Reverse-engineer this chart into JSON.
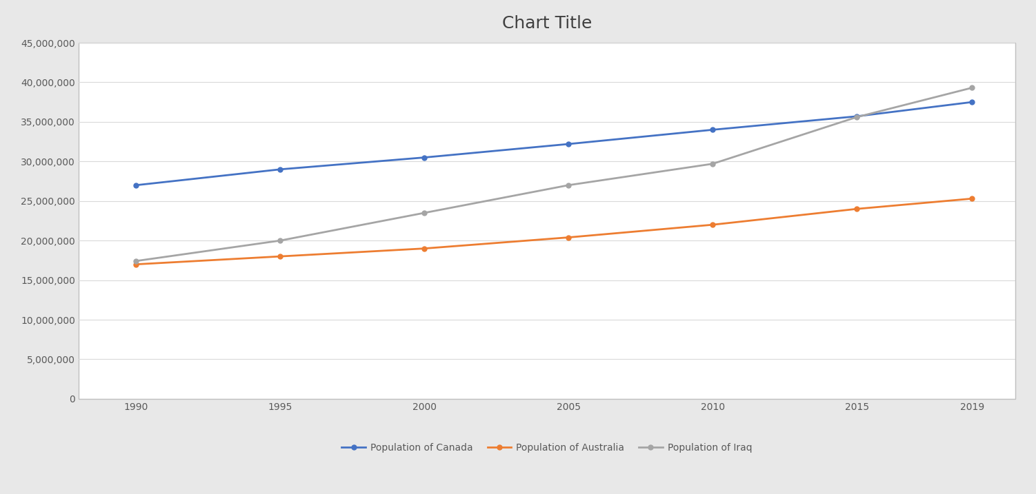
{
  "title": "Chart Title",
  "years": [
    1990,
    1995,
    2000,
    2005,
    2010,
    2015,
    2019
  ],
  "canada": [
    27000000,
    29000000,
    30500000,
    32200000,
    34000000,
    35700000,
    37500000
  ],
  "australia": [
    17000000,
    18000000,
    19000000,
    20400000,
    22000000,
    24000000,
    25300000
  ],
  "iraq": [
    17420000,
    20000000,
    23500000,
    27000000,
    29700000,
    35600000,
    39310000
  ],
  "canada_color": "#4472C4",
  "australia_color": "#ED7D31",
  "iraq_color": "#A5A5A5",
  "title_fontsize": 18,
  "legend_labels": [
    "Population of Canada",
    "Population of Australia",
    "Population of Iraq"
  ],
  "ylim": [
    0,
    45000000
  ],
  "ytick_step": 5000000,
  "background_color": "#FFFFFF",
  "chart_bg": "#FFFFFF",
  "grid_color": "#E0E0E0",
  "marker": "o",
  "markersize": 5,
  "linewidth": 2.0
}
